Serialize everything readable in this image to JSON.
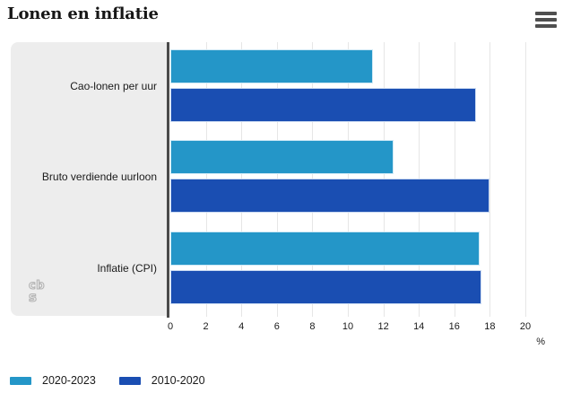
{
  "header": {
    "title": "Lonen en inflatie",
    "menu_icon": "hamburger-icon"
  },
  "chart_data": {
    "type": "bar",
    "orientation": "horizontal",
    "title": "Lonen en inflatie",
    "categories": [
      "Cao-lonen per uur",
      "Bruto verdiende uurloon",
      "Inflatie (CPI)"
    ],
    "series": [
      {
        "name": "2020-2023",
        "color": "#2496c8",
        "border_color": "#cde8f5",
        "values": [
          11.4,
          12.6,
          17.4
        ]
      },
      {
        "name": "2010-2020",
        "color": "#1a4eb2",
        "border_color": "#c9d9f1",
        "values": [
          17.2,
          18.0,
          17.5
        ]
      }
    ],
    "xlim": [
      0,
      20
    ],
    "ticks": [
      0,
      2,
      4,
      6,
      8,
      10,
      12,
      14,
      16,
      18,
      20
    ],
    "xlabel": "%",
    "grid": true,
    "legend_position": "bottom"
  },
  "branding": {
    "logo": "cbs-logo"
  },
  "colors": {
    "panel_background": "#ededed",
    "axis_line": "#4b4b4b",
    "gridline": "#e6e6e6",
    "text": "#1a1a1a",
    "menu_icon": "#4f4f4f",
    "logo_stroke": "#b3b3b3"
  }
}
